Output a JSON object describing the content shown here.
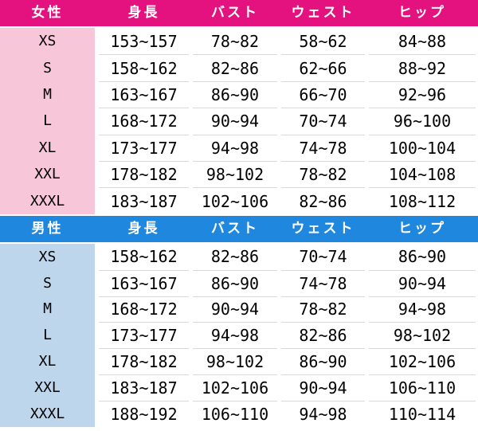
{
  "colors": {
    "women_header_bg": "#E3127E",
    "women_label_col_bg": "#F7C6D9",
    "men_header_bg": "#1F87DE",
    "men_label_col_bg": "#BDD6EC",
    "header_text": "#FFFFFF",
    "body_text": "#000000",
    "row_separator": "#D9D9D9",
    "cell_bg": "#FFFFFF"
  },
  "chart_data": [
    {
      "type": "table",
      "title": "女性",
      "columns": [
        "女性",
        "身長",
        "バスト",
        "ウェスト",
        "ヒップ"
      ],
      "rows": [
        [
          "XS",
          "153~157",
          "78~82",
          "58~62",
          "84~88"
        ],
        [
          "S",
          "158~162",
          "82~86",
          "62~66",
          "88~92"
        ],
        [
          "M",
          "163~167",
          "86~90",
          "66~70",
          "92~96"
        ],
        [
          "L",
          "168~172",
          "90~94",
          "70~74",
          "96~100"
        ],
        [
          "XL",
          "173~177",
          "94~98",
          "74~78",
          "100~104"
        ],
        [
          "XXL",
          "178~182",
          "98~102",
          "78~82",
          "104~108"
        ],
        [
          "XXXL",
          "183~187",
          "102~106",
          "82~86",
          "108~112"
        ]
      ]
    },
    {
      "type": "table",
      "title": "男性",
      "columns": [
        "男性",
        "身長",
        "バスト",
        "ウェスト",
        "ヒップ"
      ],
      "rows": [
        [
          "XS",
          "158~162",
          "82~86",
          "70~74",
          "86~90"
        ],
        [
          "S",
          "163~167",
          "86~90",
          "74~78",
          "90~94"
        ],
        [
          "M",
          "168~172",
          "90~94",
          "78~82",
          "94~98"
        ],
        [
          "L",
          "173~177",
          "94~98",
          "82~86",
          "98~102"
        ],
        [
          "XL",
          "178~182",
          "98~102",
          "86~90",
          "102~106"
        ],
        [
          "XXL",
          "183~187",
          "102~106",
          "90~94",
          "106~110"
        ],
        [
          "XXXL",
          "188~192",
          "106~110",
          "94~98",
          "110~114"
        ]
      ]
    }
  ]
}
